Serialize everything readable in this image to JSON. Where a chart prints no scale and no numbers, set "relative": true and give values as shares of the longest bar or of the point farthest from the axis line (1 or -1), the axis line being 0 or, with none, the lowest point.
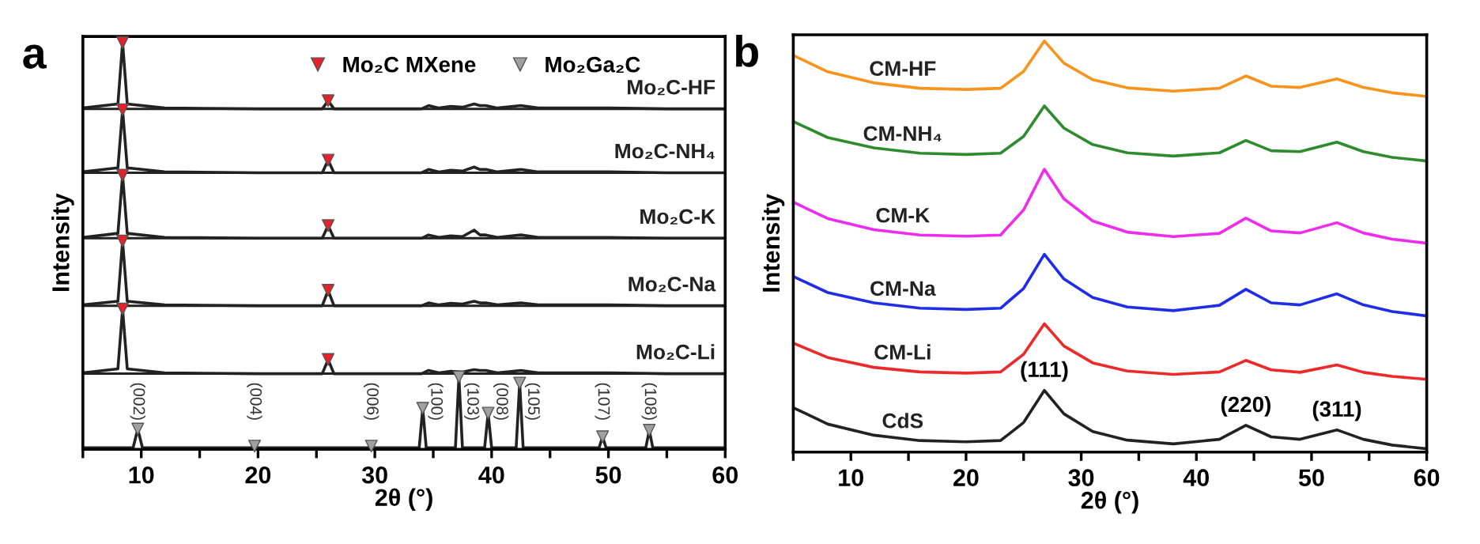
{
  "chart_data": [
    {
      "type": "line",
      "relative": true,
      "xlabel": "2θ (°)",
      "ylabel": "Intensity",
      "xlim": [
        5,
        60
      ],
      "xticks": [
        {
          "value": 5,
          "label": null
        },
        10,
        {
          "value": 15,
          "label": null
        },
        20,
        {
          "value": 25,
          "label": null
        },
        30,
        {
          "value": 35,
          "label": null
        },
        40,
        {
          "value": 45,
          "label": null
        },
        50,
        {
          "value": 55,
          "label": null
        },
        60
      ],
      "tick_labels": "x",
      "legend": "top",
      "line_style": "solid",
      "x": [
        5,
        8.0,
        8.4,
        8.8,
        12,
        20,
        25.5,
        26.0,
        26.5,
        30,
        34,
        34.6,
        35.5,
        36.5,
        37.5,
        38.5,
        39.0,
        39.5,
        40.5,
        42.5,
        44,
        50,
        55,
        60
      ],
      "series": [
        {
          "name": "Mo₂C-HF",
          "color": "#222222",
          "values": [
            0.839,
            0.849,
            1.0,
            0.849,
            0.839,
            0.837,
            0.837,
            0.857,
            0.837,
            0.837,
            0.837,
            0.845,
            0.839,
            0.843,
            0.841,
            0.849,
            0.845,
            0.845,
            0.839,
            0.845,
            0.839,
            0.839,
            0.837,
            0.837
          ]
        },
        {
          "name": "Mo₂C-NH₄",
          "color": "#222222",
          "values": [
            0.682,
            0.692,
            0.835,
            0.692,
            0.682,
            0.68,
            0.68,
            0.711,
            0.68,
            0.68,
            0.68,
            0.688,
            0.682,
            0.686,
            0.684,
            0.694,
            0.688,
            0.688,
            0.682,
            0.688,
            0.682,
            0.682,
            0.68,
            0.68
          ]
        },
        {
          "name": "Mo₂C-K",
          "color": "#222222",
          "values": [
            0.521,
            0.531,
            0.674,
            0.531,
            0.521,
            0.519,
            0.519,
            0.55,
            0.519,
            0.519,
            0.519,
            0.527,
            0.521,
            0.525,
            0.523,
            0.539,
            0.527,
            0.527,
            0.521,
            0.527,
            0.521,
            0.521,
            0.519,
            0.519
          ]
        },
        {
          "name": "Mo₂C-Na",
          "color": "#222222",
          "values": [
            0.355,
            0.364,
            0.512,
            0.364,
            0.355,
            0.353,
            0.353,
            0.391,
            0.353,
            0.353,
            0.353,
            0.36,
            0.355,
            0.359,
            0.357,
            0.364,
            0.36,
            0.36,
            0.355,
            0.36,
            0.355,
            0.355,
            0.353,
            0.353
          ]
        },
        {
          "name": "Mo₂C-Li",
          "color": "#222222",
          "values": [
            0.188,
            0.198,
            0.345,
            0.198,
            0.188,
            0.186,
            0.186,
            0.221,
            0.186,
            0.186,
            0.186,
            0.194,
            0.188,
            0.192,
            0.19,
            0.196,
            0.194,
            0.194,
            0.188,
            0.194,
            0.188,
            0.188,
            0.186,
            0.186
          ]
        },
        {
          "color": "#222222",
          "x": [
            5,
            9.3,
            9.7,
            10.1,
            19.4,
            19.7,
            20,
            29.4,
            29.7,
            30,
            33.8,
            34.1,
            34.4,
            36.9,
            37.2,
            37.5,
            39.4,
            39.7,
            40,
            42.1,
            42.4,
            42.7,
            49.2,
            49.5,
            49.8,
            53.2,
            53.5,
            53.8,
            60
          ],
          "values": [
            0.004,
            0.004,
            0.05,
            0.004,
            0.004,
            0.008,
            0.004,
            0.004,
            0.008,
            0.004,
            0.004,
            0.101,
            0.004,
            0.004,
            0.178,
            0.004,
            0.004,
            0.089,
            0.004,
            0.004,
            0.163,
            0.004,
            0.004,
            0.031,
            0.004,
            0.004,
            0.047,
            0.004,
            0.004
          ]
        },
        {
          "name": "Mo₂C MXene",
          "type": "scatter",
          "marker": "triangle",
          "color": "#e8202a",
          "x": [
            8.4,
            8.4,
            8.4,
            8.4,
            8.4,
            26.0,
            26.0,
            26.0,
            26.0,
            26.0
          ],
          "values": [
            1.0,
            0.835,
            0.674,
            0.512,
            0.345,
            0.857,
            0.711,
            0.55,
            0.391,
            0.221
          ]
        },
        {
          "name": "Mo₂Ga₂C",
          "type": "scatter",
          "marker": "triangle",
          "color": "#a0a0a0",
          "x": [
            9.7,
            19.7,
            29.7,
            34.1,
            37.2,
            39.7,
            42.4,
            49.5,
            53.5
          ],
          "values": [
            0.05,
            0.008,
            0.008,
            0.101,
            0.178,
            0.089,
            0.163,
            0.031,
            0.047
          ]
        }
      ],
      "ref_lines": [
        {
          "axis": "y",
          "value": 0.837,
          "color": "#222222"
        },
        {
          "axis": "y",
          "value": 0.68,
          "color": "#222222"
        },
        {
          "axis": "y",
          "value": 0.519,
          "color": "#222222"
        },
        {
          "axis": "y",
          "value": 0.353,
          "color": "#222222"
        },
        {
          "axis": "y",
          "value": 0.186,
          "color": "#222222"
        }
      ],
      "annotations": [
        "a",
        {
          "text": "(002)",
          "x": 9.7,
          "y": 0.05
        },
        {
          "text": "(004)",
          "x": 19.7,
          "y": 0.008
        },
        {
          "text": "(006)",
          "x": 29.7,
          "y": 0.008
        },
        {
          "text": "(100)",
          "x": 34.1,
          "y": 0.101
        },
        {
          "text": "(103)",
          "x": 37.2,
          "y": 0.178
        },
        {
          "text": "(008)",
          "x": 39.7,
          "y": 0.089
        },
        {
          "text": "(105)",
          "x": 42.4,
          "y": 0.163
        },
        {
          "text": "(107)",
          "x": 49.5,
          "y": 0.031
        },
        {
          "text": "(108)",
          "x": 53.5,
          "y": 0.047
        }
      ]
    },
    {
      "type": "line",
      "relative": true,
      "xlabel": "2θ (°)",
      "ylabel": "Intensity",
      "xlim": [
        5,
        60
      ],
      "xticks": [
        {
          "value": 5,
          "label": null
        },
        10,
        {
          "value": 15,
          "label": null
        },
        20,
        {
          "value": 25,
          "label": null
        },
        30,
        {
          "value": 35,
          "label": null
        },
        40,
        {
          "value": 45,
          "label": null
        },
        50,
        {
          "value": 55,
          "label": null
        },
        60
      ],
      "tick_labels": "x",
      "line_style": "solid",
      "x": [
        5,
        8,
        12,
        16,
        20,
        23,
        25,
        26.8,
        28.5,
        31,
        34,
        38,
        42,
        44.3,
        46.5,
        49,
        52.2,
        54.5,
        57,
        60
      ],
      "series": [
        {
          "name": "CM-HF",
          "color": "#f7941d",
          "values": [
            0.965,
            0.925,
            0.898,
            0.885,
            0.882,
            0.885,
            0.926,
            1.0,
            0.946,
            0.906,
            0.886,
            0.878,
            0.885,
            0.915,
            0.89,
            0.887,
            0.908,
            0.887,
            0.874,
            0.865
          ]
        },
        {
          "name": "CM-NH₄",
          "color": "#2e8b2e",
          "values": [
            0.804,
            0.765,
            0.74,
            0.727,
            0.724,
            0.727,
            0.768,
            0.842,
            0.788,
            0.748,
            0.728,
            0.72,
            0.728,
            0.758,
            0.733,
            0.731,
            0.754,
            0.731,
            0.717,
            0.708
          ]
        },
        {
          "name": "CM-K",
          "color": "#ee2cee",
          "values": [
            0.608,
            0.568,
            0.541,
            0.528,
            0.525,
            0.528,
            0.589,
            0.688,
            0.616,
            0.562,
            0.535,
            0.524,
            0.532,
            0.569,
            0.538,
            0.533,
            0.558,
            0.533,
            0.518,
            0.508
          ]
        },
        {
          "name": "CM-Na",
          "color": "#1f2ee6",
          "values": [
            0.427,
            0.388,
            0.363,
            0.35,
            0.347,
            0.35,
            0.398,
            0.481,
            0.421,
            0.376,
            0.353,
            0.344,
            0.357,
            0.396,
            0.363,
            0.358,
            0.385,
            0.358,
            0.342,
            0.331
          ]
        },
        {
          "name": "CM-Li",
          "color": "#ec2a2a",
          "values": [
            0.265,
            0.23,
            0.206,
            0.195,
            0.192,
            0.195,
            0.238,
            0.312,
            0.258,
            0.217,
            0.197,
            0.189,
            0.195,
            0.223,
            0.2,
            0.194,
            0.212,
            0.194,
            0.184,
            0.177
          ]
        },
        {
          "name": "CdS",
          "color": "#222222",
          "values": [
            0.108,
            0.068,
            0.041,
            0.028,
            0.025,
            0.028,
            0.072,
            0.15,
            0.093,
            0.05,
            0.029,
            0.02,
            0.031,
            0.065,
            0.037,
            0.031,
            0.054,
            0.031,
            0.017,
            0.008
          ]
        }
      ],
      "annotations": [
        "b",
        {
          "text": "(111)",
          "x": 26.8,
          "y": 0.15
        },
        {
          "text": "(220)",
          "x": 44.3,
          "y": 0.065
        },
        {
          "text": "(311)",
          "x": 52.2,
          "y": 0.054
        }
      ]
    }
  ]
}
